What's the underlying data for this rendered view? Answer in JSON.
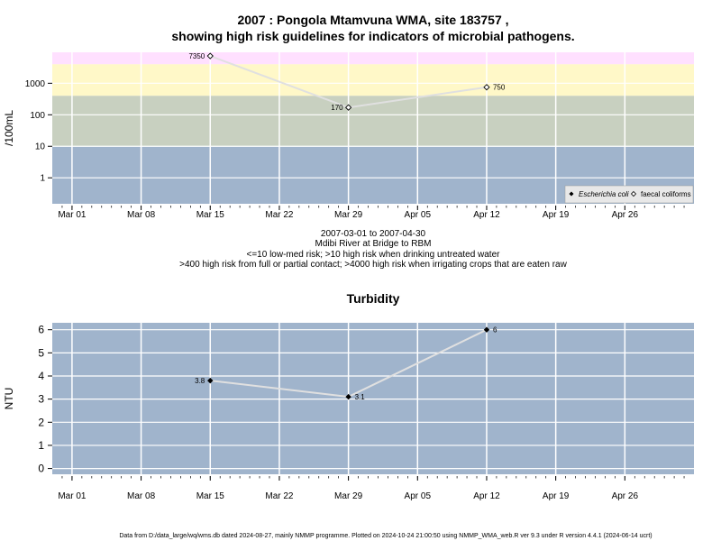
{
  "colors": {
    "band_pink": "#FFE0FF",
    "band_yellow": "#FFF8C8",
    "band_green": "#C8D0C0",
    "band_blue": "#A0B4CC",
    "plot_bg": "#A0B4CC",
    "grid": "#FFFFFF",
    "line": "#E0E0E0",
    "point": "#000000"
  },
  "x_ticks": [
    "Mar 01",
    "Mar 08",
    "Mar 15",
    "Mar 22",
    "Mar 29",
    "Apr 05",
    "Apr 12",
    "Apr 19",
    "Apr 26"
  ],
  "micro": {
    "title_line1": "2007 : Pongola Mtamvuna WMA, site 183757 ,",
    "title_line2": "showing high risk guidelines for indicators of microbial pathogens.",
    "ylabel": "/100mL",
    "y_ticks": [
      "1",
      "10",
      "100",
      "1000"
    ],
    "sub": [
      "2007-03-01 to 2007-04-30",
      "Mdibi River at Bridge to RBM",
      "<=10 low-med risk; >10 high risk when drinking untreated water",
      ">400 high risk from full or partial contact; >4000 high risk when irrigating crops that are eaten raw"
    ],
    "legend": {
      "ecoli": "Escherichia coli",
      "fc": "faecal coliforms"
    }
  },
  "turb": {
    "title": "Turbidity",
    "ylabel": "NTU",
    "y_ticks": [
      "0",
      "1",
      "2",
      "3",
      "4",
      "5",
      "6"
    ]
  },
  "footer": "Data from D:/data_large/wq/wms.db dated 2024-08-27, mainly NMMP programme. Plotted on 2024-10-24 21:00:50 using NMMP_WMA_web.R ver 9.3 under R version 4.4.1 (2024-06-14 ucrt)",
  "chart_data": [
    {
      "type": "line",
      "title": "2007 : Pongola Mtamvuna WMA, site 183757 , showing high risk guidelines for indicators of microbial pathogens.",
      "ylabel": "/100mL",
      "y_scale": "log10",
      "xlim": [
        "2007-02-27",
        "2007-05-03"
      ],
      "ylim": [
        0.15,
        9600
      ],
      "guideline_bands": [
        10,
        400,
        4000
      ],
      "legend_position": "bottom-right",
      "series": [
        {
          "name": "faecal coliforms",
          "marker": "open-diamond",
          "x": [
            "2007-03-15",
            "2007-03-29",
            "2007-04-12"
          ],
          "y": [
            7350,
            170,
            750
          ],
          "labels": [
            "7350",
            "170",
            "750"
          ]
        }
      ]
    },
    {
      "type": "line",
      "title": "Turbidity",
      "ylabel": "NTU",
      "xlim": [
        "2007-02-27",
        "2007-05-03"
      ],
      "ylim": [
        -0.25,
        6.3
      ],
      "series": [
        {
          "marker": "filled-diamond",
          "x": [
            "2007-03-15",
            "2007-03-29",
            "2007-04-12"
          ],
          "y": [
            3.8,
            3.1,
            6
          ],
          "labels": [
            "3.8",
            "3.1",
            "6"
          ]
        }
      ]
    }
  ]
}
